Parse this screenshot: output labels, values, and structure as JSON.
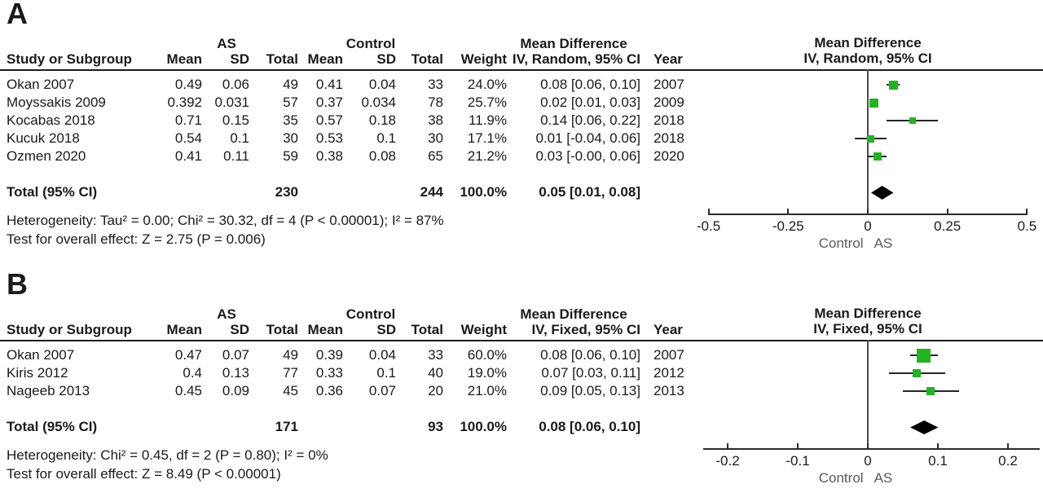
{
  "colors": {
    "marker_green": "#22B322",
    "diamond_black": "#000000",
    "line": "#2b2b2b"
  },
  "header": {
    "study": "Study or Subgroup",
    "mean": "Mean",
    "sd": "SD",
    "total": "Total",
    "weight": "Weight",
    "year": "Year"
  },
  "chart_data": [
    {
      "type": "forest",
      "panel": "A",
      "model": "Random",
      "md_header": "Mean Difference",
      "ci_header": "IV, Random, 95% CI",
      "group_as": "AS",
      "group_control": "Control",
      "studies": [
        {
          "study": "Okan 2007",
          "mean_as": "0.49",
          "sd_as": "0.06",
          "n_as": "49",
          "mean_c": "0.41",
          "sd_c": "0.04",
          "n_c": "33",
          "weight": "24.0%",
          "md_text": "0.08 [0.06, 0.10]",
          "year": "2007",
          "md": 0.08,
          "lo": 0.06,
          "hi": 0.1,
          "weight_pct": 24.0
        },
        {
          "study": "Moyssakis 2009",
          "mean_as": "0.392",
          "sd_as": "0.031",
          "n_as": "57",
          "mean_c": "0.37",
          "sd_c": "0.034",
          "n_c": "78",
          "weight": "25.7%",
          "md_text": "0.02 [0.01, 0.03]",
          "year": "2009",
          "md": 0.02,
          "lo": 0.01,
          "hi": 0.03,
          "weight_pct": 25.7
        },
        {
          "study": "Kocabas 2018",
          "mean_as": "0.71",
          "sd_as": "0.15",
          "n_as": "35",
          "mean_c": "0.57",
          "sd_c": "0.18",
          "n_c": "38",
          "weight": "11.9%",
          "md_text": "0.14 [0.06, 0.22]",
          "year": "2018",
          "md": 0.14,
          "lo": 0.06,
          "hi": 0.22,
          "weight_pct": 11.9
        },
        {
          "study": "Kucuk 2018",
          "mean_as": "0.54",
          "sd_as": "0.1",
          "n_as": "30",
          "mean_c": "0.53",
          "sd_c": "0.1",
          "n_c": "30",
          "weight": "17.1%",
          "md_text": "0.01 [-0.04, 0.06]",
          "year": "2018",
          "md": 0.01,
          "lo": -0.04,
          "hi": 0.06,
          "weight_pct": 17.1
        },
        {
          "study": "Ozmen 2020",
          "mean_as": "0.41",
          "sd_as": "0.11",
          "n_as": "59",
          "mean_c": "0.38",
          "sd_c": "0.08",
          "n_c": "65",
          "weight": "21.2%",
          "md_text": "0.03 [-0.00, 0.06]",
          "year": "2020",
          "md": 0.03,
          "lo": 0.0,
          "hi": 0.06,
          "weight_pct": 21.2
        }
      ],
      "total": {
        "label": "Total (95% CI)",
        "n_as": "230",
        "n_c": "244",
        "weight": "100.0%",
        "md_text": "0.05 [0.01, 0.08]",
        "md": 0.05,
        "lo": 0.01,
        "hi": 0.08
      },
      "heterogeneity": "Heterogeneity: Tau² = 0.00; Chi² = 30.32, df = 4 (P < 0.00001); I² = 87%",
      "overall_effect": "Test for overall effect: Z = 2.75 (P = 0.006)",
      "axis": {
        "ticks": [
          "-0.5",
          "-0.25",
          "0",
          "0.25",
          "0.5"
        ],
        "tick_values": [
          -0.5,
          -0.25,
          0,
          0.25,
          0.5
        ],
        "range": [
          -0.55,
          0.55
        ],
        "line": [
          -0.5,
          0.5
        ],
        "favours_left": "Control",
        "favours_right": "AS"
      }
    },
    {
      "type": "forest",
      "panel": "B",
      "model": "Fixed",
      "md_header": "Mean Difference",
      "ci_header": "IV, Fixed, 95% CI",
      "group_as": "AS",
      "group_control": "Control",
      "studies": [
        {
          "study": "Okan 2007",
          "mean_as": "0.47",
          "sd_as": "0.07",
          "n_as": "49",
          "mean_c": "0.39",
          "sd_c": "0.04",
          "n_c": "33",
          "weight": "60.0%",
          "md_text": "0.08 [0.06, 0.10]",
          "year": "2007",
          "md": 0.08,
          "lo": 0.06,
          "hi": 0.1,
          "weight_pct": 60.0
        },
        {
          "study": "Kiris 2012",
          "mean_as": "0.4",
          "sd_as": "0.13",
          "n_as": "77",
          "mean_c": "0.33",
          "sd_c": "0.1",
          "n_c": "40",
          "weight": "19.0%",
          "md_text": "0.07 [0.03, 0.11]",
          "year": "2012",
          "md": 0.07,
          "lo": 0.03,
          "hi": 0.11,
          "weight_pct": 19.0
        },
        {
          "study": "Nageeb 2013",
          "mean_as": "0.45",
          "sd_as": "0.09",
          "n_as": "45",
          "mean_c": "0.36",
          "sd_c": "0.07",
          "n_c": "20",
          "weight": "21.0%",
          "md_text": "0.09 [0.05, 0.13]",
          "year": "2013",
          "md": 0.09,
          "lo": 0.05,
          "hi": 0.13,
          "weight_pct": 21.0
        }
      ],
      "total": {
        "label": "Total (95% CI)",
        "n_as": "171",
        "n_c": "93",
        "weight": "100.0%",
        "md_text": "0.08 [0.06, 0.10]",
        "md": 0.08,
        "lo": 0.06,
        "hi": 0.1
      },
      "heterogeneity": "Heterogeneity: Chi² = 0.45, df = 2 (P = 0.80); I² = 0%",
      "overall_effect": "Test for overall effect: Z = 8.49 (P < 0.00001)",
      "axis": {
        "ticks": [
          "-0.2",
          "-0.1",
          "0",
          "0.1",
          "0.2"
        ],
        "tick_values": [
          -0.2,
          -0.1,
          0,
          0.1,
          0.2
        ],
        "range": [
          -0.25,
          0.25
        ],
        "line": [
          -0.235,
          0.245
        ],
        "favours_left": "Control",
        "favours_right": "AS"
      }
    }
  ]
}
